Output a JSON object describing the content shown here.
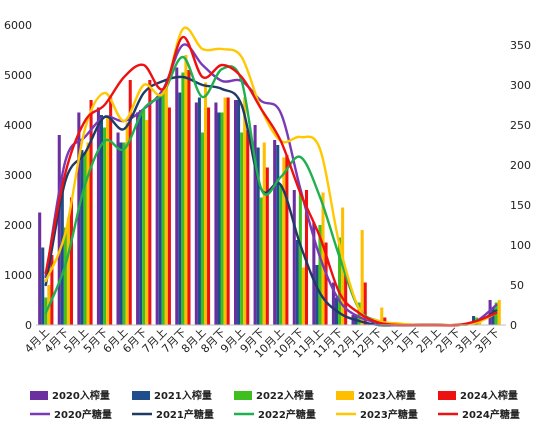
{
  "chart_data": {
    "type": "bar+line",
    "categories": [
      "4月上",
      "4月下",
      "5月上",
      "5月下",
      "6月上",
      "6月下",
      "7月上",
      "7月下",
      "8月上",
      "8月下",
      "9月上",
      "9月下",
      "10月上",
      "10月下",
      "11月上",
      "11月下",
      "12月上",
      "12月下",
      "1月上",
      "1月下",
      "2月上",
      "2月下",
      "3月上",
      "3月下"
    ],
    "y_left": {
      "min": 0,
      "max": 6000,
      "ticks": [
        0,
        1000,
        2000,
        3000,
        4000,
        5000,
        6000
      ]
    },
    "y_right": {
      "min": 0,
      "max": 375,
      "ticks": [
        0,
        50,
        100,
        150,
        200,
        250,
        300,
        350
      ]
    },
    "grid": false,
    "legend_position": "bottom",
    "bar_series": [
      {
        "name": "2020入榨量",
        "color": "#6b2fa0",
        "values": [
          2250,
          3800,
          4250,
          4350,
          3850,
          4250,
          4550,
          5150,
          4450,
          4450,
          4500,
          4000,
          3700,
          2700,
          2050,
          850,
          200,
          50,
          0,
          0,
          0,
          0,
          50,
          500
        ]
      },
      {
        "name": "2021入榨量",
        "color": "#1f4e8c",
        "values": [
          1550,
          2950,
          3500,
          4200,
          3650,
          4300,
          4600,
          4650,
          4550,
          4250,
          4500,
          3550,
          3600,
          1700,
          1200,
          550,
          200,
          30,
          0,
          0,
          0,
          0,
          180,
          350
        ]
      },
      {
        "name": "2022入榨量",
        "color": "#3fbf1f",
        "values": [
          550,
          1950,
          3450,
          3950,
          3650,
          4300,
          4700,
          5050,
          3850,
          4250,
          3850,
          2550,
          2800,
          2650,
          2000,
          1750,
          450,
          50,
          0,
          0,
          0,
          0,
          150,
          450
        ]
      },
      {
        "name": "2023入榨量",
        "color": "#ffbf00",
        "values": [
          800,
          2150,
          3650,
          4150,
          4050,
          4100,
          4750,
          5400,
          4850,
          4550,
          4550,
          3650,
          3350,
          1150,
          2650,
          2350,
          1900,
          350,
          20,
          0,
          0,
          0,
          50,
          500
        ]
      },
      {
        "name": "2024入榨量",
        "color": "#ee1111",
        "values": [
          1400,
          2550,
          4500,
          4550,
          4900,
          4900,
          4350,
          5100,
          4350,
          4550,
          3900,
          3150,
          3400,
          2700,
          1650,
          1100,
          850,
          150,
          0,
          0,
          0,
          0,
          0,
          0
        ]
      }
    ],
    "line_series": [
      {
        "name": "2020产糖量",
        "color": "#7a3ab5",
        "values": [
          60,
          205,
          235,
          260,
          255,
          270,
          295,
          350,
          325,
          305,
          305,
          280,
          265,
          170,
          85,
          30,
          10,
          3,
          0,
          0,
          0,
          0,
          5,
          25
        ]
      },
      {
        "name": "2021产糖量",
        "color": "#1f3a66",
        "values": [
          50,
          180,
          215,
          260,
          245,
          290,
          305,
          310,
          300,
          295,
          275,
          170,
          175,
          100,
          40,
          15,
          5,
          0,
          0,
          0,
          0,
          0,
          3,
          18
        ]
      },
      {
        "name": "2022产糖量",
        "color": "#1fb04f",
        "values": [
          15,
          75,
          175,
          230,
          220,
          270,
          290,
          335,
          285,
          320,
          305,
          170,
          185,
          210,
          160,
          85,
          20,
          5,
          0,
          0,
          0,
          0,
          3,
          15
        ]
      },
      {
        "name": "2023产糖量",
        "color": "#ffc800",
        "values": [
          55,
          115,
          245,
          290,
          255,
          300,
          290,
          370,
          345,
          345,
          335,
          270,
          230,
          235,
          220,
          100,
          20,
          5,
          2,
          0,
          0,
          0,
          3,
          15
        ]
      },
      {
        "name": "2024产糖量",
        "color": "#ee1111",
        "values": [
          65,
          190,
          255,
          275,
          310,
          325,
          295,
          360,
          310,
          325,
          310,
          270,
          230,
          165,
          110,
          40,
          15,
          3,
          0,
          0,
          0,
          0,
          5,
          15
        ]
      }
    ]
  }
}
